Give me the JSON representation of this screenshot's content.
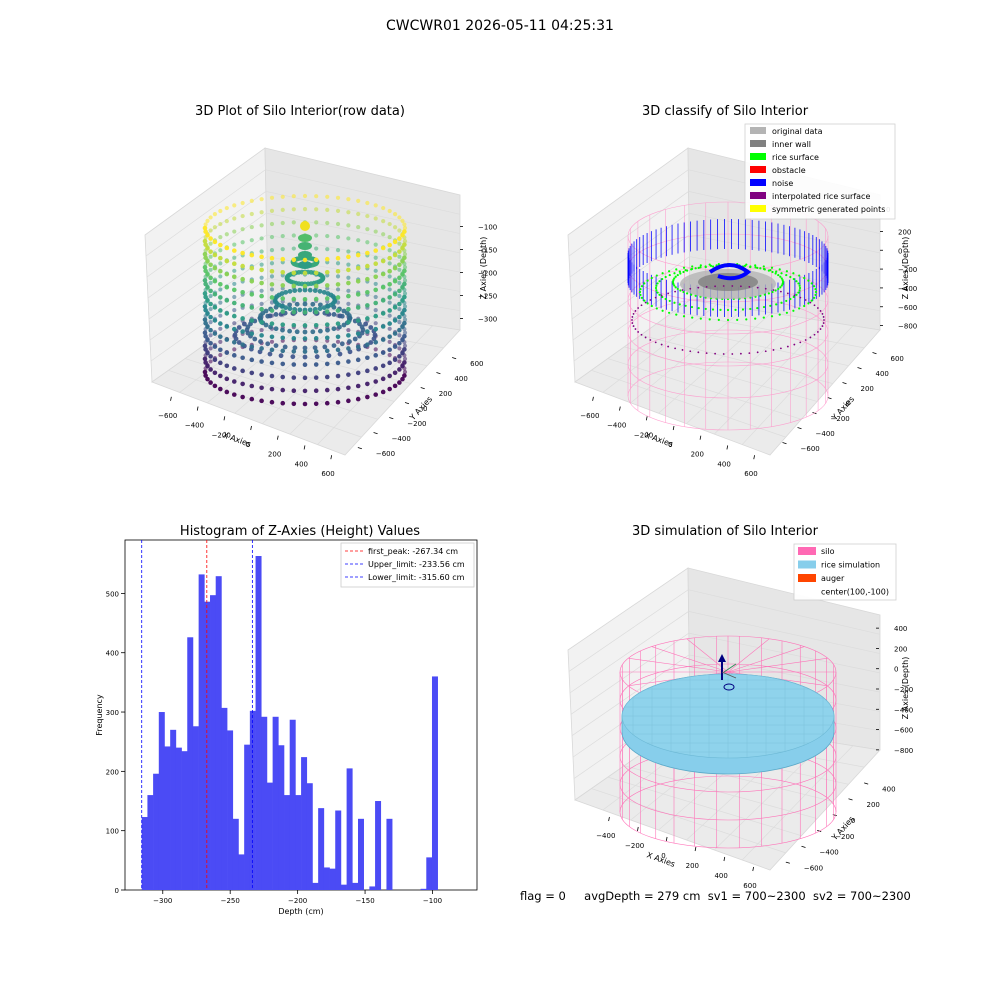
{
  "suptitle": "CWCWR01 2026-05-11 04:25:31",
  "plots": {
    "raw": {
      "title": "3D Plot of Silo Interior(row data)",
      "x_label": "X Axies",
      "y_label": "Y Axies",
      "z_label": "Z Axies (Depth)",
      "x_ticks": [
        "−600",
        "−400",
        "−200",
        "0",
        "200",
        "400",
        "600"
      ],
      "y_ticks": [
        "600",
        "400",
        "200",
        "0",
        "−200",
        "−400",
        "−600"
      ],
      "z_ticks": [
        "−100",
        "−150",
        "−200",
        "−250",
        "−300"
      ],
      "colormap": "viridis"
    },
    "classify": {
      "title": "3D classify of Silo Interior",
      "x_label": "X Axies",
      "y_label": "Y Axies",
      "z_label": "Z Axies (Depth)",
      "x_ticks": [
        "−600",
        "−400",
        "−200",
        "0",
        "200",
        "400",
        "600"
      ],
      "y_ticks": [
        "600",
        "400",
        "200",
        "0",
        "−200",
        "−400",
        "−600"
      ],
      "z_ticks": [
        "200",
        "0",
        "−200",
        "−400",
        "−600",
        "−800"
      ],
      "z_top_partial": "0",
      "legend": [
        {
          "label": "original data",
          "color": "#b4b4b4"
        },
        {
          "label": "inner wall",
          "color": "#808080"
        },
        {
          "label": "rice surface",
          "color": "#00ff00"
        },
        {
          "label": "obstacle",
          "color": "#ff0000"
        },
        {
          "label": "noise",
          "color": "#0000ff"
        },
        {
          "label": "interpolated rice surface",
          "color": "#800080"
        },
        {
          "label": "symmetric generated points",
          "color": "#ffff00"
        }
      ]
    },
    "histogram": {
      "title": "Histogram of Z-Axies (Height) Values",
      "x_label": "Depth (cm)",
      "y_label": "Frequency",
      "x_ticks": [
        "−300",
        "−250",
        "−200",
        "−150",
        "−100"
      ],
      "y_ticks": [
        "0",
        "100",
        "200",
        "300",
        "400",
        "500"
      ],
      "legend": [
        {
          "label": "first_peak: -267.34 cm",
          "color": "#ff0000"
        },
        {
          "label": "Upper_limit: -233.56 cm",
          "color": "#0000ff"
        },
        {
          "label": "Lower_limit: -315.60 cm",
          "color": "#0000ff"
        }
      ]
    },
    "simulation": {
      "title": "3D simulation of Silo Interior",
      "x_label": "X Axies",
      "y_label": "Y Axies",
      "z_label": "Z Axies (Depth)",
      "x_ticks": [
        "−400",
        "−200",
        "0",
        "200",
        "400",
        "600"
      ],
      "y_ticks": [
        "400",
        "200",
        "0",
        "−200",
        "−400",
        "−600"
      ],
      "z_ticks": [
        "400",
        "200",
        "0",
        "−200",
        "−400",
        "−600",
        "−800"
      ],
      "legend": [
        {
          "label": "silo",
          "color": "#ff69b4"
        },
        {
          "label": "rice simulation",
          "color": "#87ceeb"
        },
        {
          "label": "auger",
          "color": "#ff4500"
        },
        {
          "label": "center(100,-100)",
          "color": ""
        }
      ]
    }
  },
  "footer": {
    "flag": "flag = 0",
    "avg_depth": "avgDepth = 279 cm",
    "sv1": "sv1 = 700~2300",
    "sv2": "sv2 = 700~2300"
  },
  "chart_data": [
    {
      "type": "bar",
      "title": "Histogram of Z-Axies (Height) Values",
      "xlabel": "Depth (cm)",
      "ylabel": "Frequency",
      "xlim": [
        -328,
        -67
      ],
      "ylim": [
        0,
        590
      ],
      "bin_start": -315.6,
      "bin_width": 4.22,
      "values": [
        123,
        160,
        196,
        300,
        242,
        270,
        240,
        234,
        426,
        276,
        532,
        486,
        497,
        529,
        307,
        269,
        120,
        60,
        245,
        302,
        563,
        292,
        181,
        292,
        244,
        160,
        287,
        160,
        224,
        180,
        12,
        138,
        38,
        36,
        134,
        9,
        205,
        12,
        120,
        0,
        6,
        150,
        0,
        120,
        0,
        0,
        0,
        0,
        0,
        2,
        55,
        360
      ],
      "vlines": [
        {
          "name": "first_peak",
          "x": -267.34,
          "color": "#ff0000"
        },
        {
          "name": "Upper_limit",
          "x": -233.56,
          "color": "#0000ff"
        },
        {
          "name": "Lower_limit",
          "x": -315.6,
          "color": "#0000ff"
        }
      ]
    }
  ]
}
